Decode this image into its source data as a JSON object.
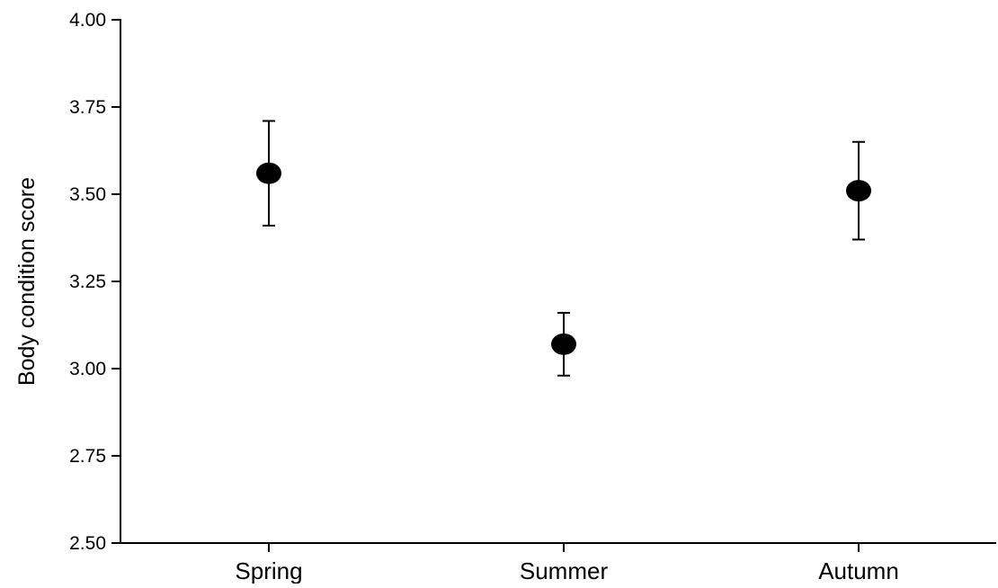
{
  "chart_data": {
    "type": "scatter",
    "title": "",
    "xlabel": "",
    "ylabel": "Body condition score",
    "categories": [
      "Spring",
      "Summer",
      "Autumn"
    ],
    "series": [
      {
        "values": [
          3.56,
          3.07,
          3.51
        ],
        "error_upper": [
          3.71,
          3.16,
          3.65
        ],
        "error_lower": [
          3.41,
          2.98,
          3.37
        ]
      }
    ],
    "ylim": [
      2.5,
      4.0
    ],
    "yticks": [
      "2.50",
      "2.75",
      "3.00",
      "3.25",
      "3.50",
      "3.75",
      "4.00"
    ],
    "grid": false,
    "legend": "none",
    "colors": {
      "marker": "#000000",
      "axis": "#000000"
    }
  }
}
